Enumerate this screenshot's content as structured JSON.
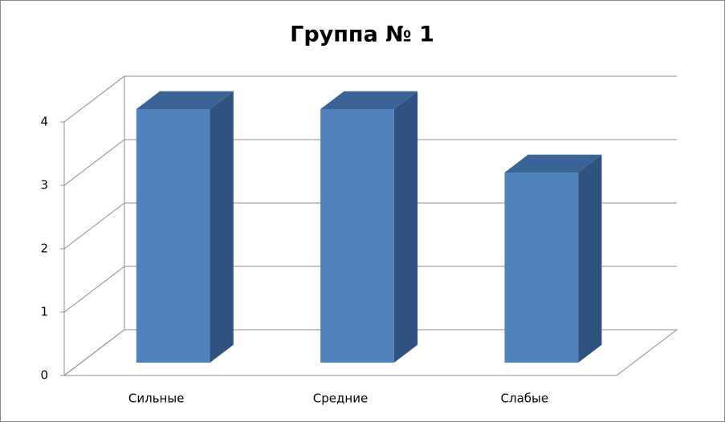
{
  "chart_data": {
    "type": "bar3d",
    "title": "Группа № 1",
    "categories": [
      "Сильные",
      "Средние",
      "Слабые"
    ],
    "values": [
      4,
      4,
      3
    ],
    "color": "#4f81bd",
    "ylim": [
      0,
      4
    ],
    "yticks": [
      0,
      1,
      2,
      3,
      4
    ],
    "grid": true
  }
}
